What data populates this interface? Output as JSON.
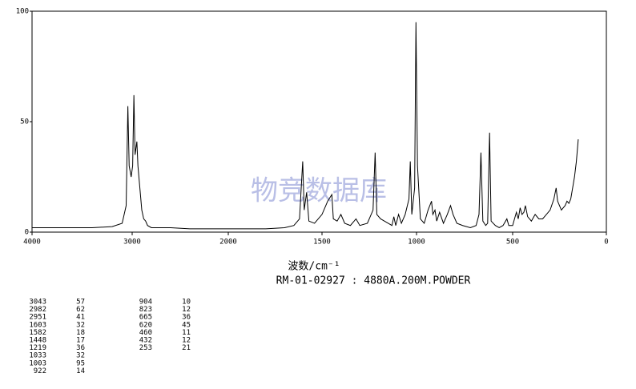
{
  "chart_data": {
    "type": "line",
    "x_label": "波数/cm⁻¹",
    "subtitle": "RM-01-02927 : 4880A.200M.POWDER",
    "watermark": "物竞数据库",
    "xlim": [
      4000,
      0
    ],
    "ylim": [
      0,
      100
    ],
    "xticks": [
      4000,
      3000,
      2000,
      1500,
      1000,
      500,
      0
    ],
    "yticks": [
      0,
      50,
      100
    ],
    "color": "#000000",
    "x": [
      4000,
      3700,
      3400,
      3200,
      3100,
      3060,
      3043,
      3030,
      3010,
      2995,
      2982,
      2970,
      2951,
      2940,
      2920,
      2900,
      2880,
      2860,
      2840,
      2800,
      2600,
      2400,
      2200,
      2000,
      1800,
      1700,
      1650,
      1620,
      1603,
      1595,
      1582,
      1570,
      1540,
      1500,
      1470,
      1448,
      1440,
      1420,
      1400,
      1380,
      1350,
      1320,
      1300,
      1260,
      1230,
      1219,
      1210,
      1190,
      1170,
      1150,
      1130,
      1120,
      1110,
      1095,
      1080,
      1060,
      1040,
      1033,
      1025,
      1010,
      1003,
      995,
      980,
      960,
      940,
      922,
      915,
      904,
      895,
      880,
      860,
      840,
      823,
      810,
      790,
      760,
      720,
      690,
      675,
      665,
      655,
      640,
      630,
      620,
      612,
      590,
      570,
      550,
      530,
      520,
      500,
      480,
      470,
      460,
      450,
      440,
      432,
      420,
      400,
      380,
      360,
      340,
      320,
      300,
      280,
      268,
      260,
      240,
      220,
      210,
      200,
      190,
      180,
      170,
      160,
      150
    ],
    "values": [
      2,
      2,
      2,
      2.5,
      4,
      12,
      57,
      30,
      25,
      30,
      62,
      35,
      41,
      30,
      20,
      10,
      6,
      5,
      3,
      2,
      2,
      1.5,
      1.5,
      1.5,
      1.5,
      2,
      3,
      6,
      32,
      10,
      18,
      5,
      4,
      8,
      14,
      17,
      6,
      5,
      8,
      4,
      3,
      6,
      3,
      4,
      10,
      36,
      8,
      6,
      5,
      4,
      3,
      7,
      3,
      8,
      4,
      8,
      15,
      32,
      8,
      20,
      95,
      30,
      6,
      4,
      10,
      14,
      8,
      10,
      5,
      9,
      4,
      8,
      12,
      8,
      4,
      3,
      2,
      3,
      8,
      36,
      5,
      3,
      4,
      45,
      5,
      3,
      2,
      3,
      6,
      3,
      3,
      9,
      6,
      11,
      8,
      9,
      12,
      7,
      5,
      8,
      6,
      6,
      8,
      10,
      15,
      20,
      14,
      10,
      12,
      14,
      13,
      15,
      20,
      25,
      32,
      42
    ],
    "peaks": [
      [
        3043,
        57
      ],
      [
        2982,
        62
      ],
      [
        2951,
        41
      ],
      [
        1603,
        32
      ],
      [
        1582,
        18
      ],
      [
        1448,
        17
      ],
      [
        1219,
        36
      ],
      [
        1033,
        32
      ],
      [
        1003,
        95
      ],
      [
        922,
        14
      ],
      [
        904,
        10
      ],
      [
        823,
        12
      ],
      [
        665,
        36
      ],
      [
        620,
        45
      ],
      [
        460,
        11
      ],
      [
        432,
        12
      ],
      [
        253,
        21
      ]
    ]
  }
}
